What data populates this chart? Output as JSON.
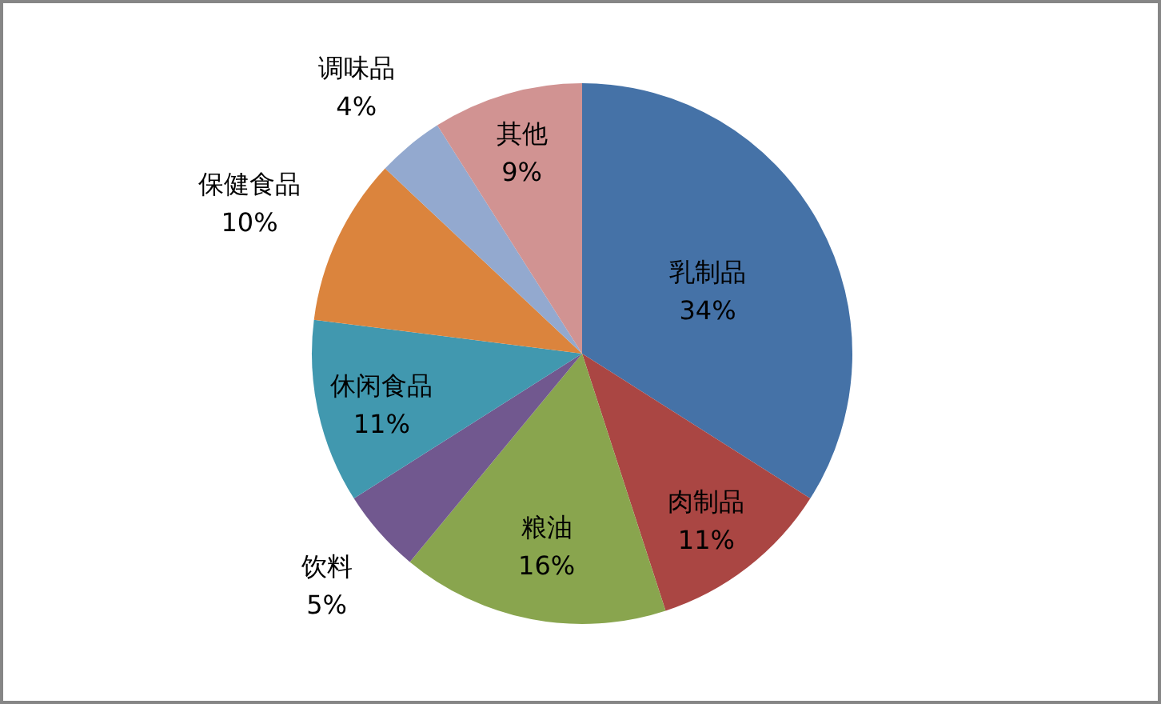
{
  "chart_data": {
    "type": "pie",
    "categories": [
      "乳制品",
      "肉制品",
      "粮油",
      "饮料",
      "休闲食品",
      "保健食品",
      "调味品",
      "其他"
    ],
    "values": [
      34,
      11,
      16,
      5,
      11,
      10,
      4,
      9
    ],
    "colors": [
      "#4572a7",
      "#aa4643",
      "#89a54e",
      "#71588f",
      "#4198af",
      "#db843d",
      "#93a9cf",
      "#d19392"
    ],
    "value_labels": [
      "34%",
      "11%",
      "16%",
      "5%",
      "11%",
      "10%",
      "4%",
      "9%"
    ]
  }
}
